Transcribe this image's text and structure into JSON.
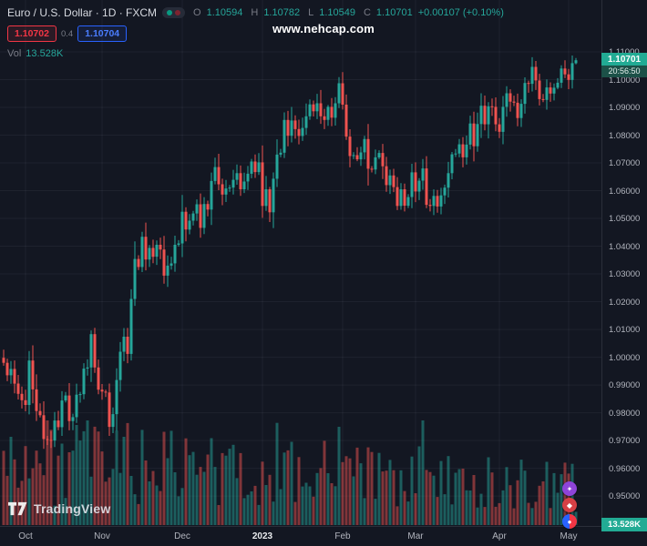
{
  "header": {
    "symbol_title": "Euro / U.S. Dollar · 1D · FXCM",
    "ohlc_labels": {
      "o": "O",
      "h": "H",
      "l": "L",
      "c": "C"
    },
    "ohlc_values": {
      "o": "1.10594",
      "h": "1.10782",
      "l": "1.10549",
      "c": "1.10701"
    },
    "change": "+0.00107 (+0.10%)",
    "sell_price": "1.10702",
    "spread": "0.4",
    "buy_price": "1.10704",
    "vol_label": "Vol",
    "vol_value": "13.528K"
  },
  "watermark": "www.nehcap.com",
  "price_scale": {
    "last_price_label": "1.10701",
    "countdown": "20:56:50",
    "volume_label": "13.528K"
  },
  "footer": {
    "brand": "TradingView"
  },
  "floating_buttons": [
    {
      "icon": "sparkle-icon",
      "glyph": "✦",
      "color": "#8e44d8"
    },
    {
      "icon": "diamond-icon",
      "glyph": "◆",
      "color": "#d64045"
    },
    {
      "icon": "dual-color-dot-icon",
      "glyph": "●",
      "color": "#2962ff/#f23645"
    }
  ],
  "colors": {
    "background": "#131722",
    "up": "#26a69a",
    "down": "#ef5350",
    "price_badge": "#22ab94",
    "sell": "#f23645",
    "buy": "#2962ff"
  },
  "chart_data": {
    "type": "candlestick",
    "title": "Euro / U.S. Dollar, 1D, FXCM",
    "symbol": "EUR/USD",
    "interval": "1D",
    "exchange": "FXCM",
    "grid": true,
    "up_color": "#26a69a",
    "down_color": "#ef5350",
    "ylim": [
      0.9392,
      1.1287
    ],
    "y_ticks": [
      "1.11000",
      "1.10000",
      "1.09000",
      "1.08000",
      "1.07000",
      "1.06000",
      "1.05000",
      "1.04000",
      "1.03000",
      "1.02000",
      "1.01000",
      "1.00000",
      "0.99000",
      "0.98000",
      "0.97000",
      "0.96000",
      "0.95000"
    ],
    "x_ticks": [
      {
        "label": "Oct",
        "index": 6,
        "major": false
      },
      {
        "label": "Nov",
        "index": 27,
        "major": false
      },
      {
        "label": "Dec",
        "index": 49,
        "major": false
      },
      {
        "label": "2023",
        "index": 71,
        "major": true
      },
      {
        "label": "Feb",
        "index": 93,
        "major": false
      },
      {
        "label": "Mar",
        "index": 113,
        "major": false
      },
      {
        "label": "Apr",
        "index": 136,
        "major": false
      },
      {
        "label": "May",
        "index": 155,
        "major": false
      }
    ],
    "closes": [
      0.998,
      0.9935,
      0.9958,
      0.9905,
      0.9868,
      0.9845,
      0.9828,
      0.9988,
      0.9884,
      0.9806,
      0.9791,
      0.9705,
      0.9702,
      0.97,
      0.9772,
      0.9748,
      0.9844,
      0.9862,
      0.977,
      0.9784,
      0.9865,
      0.9867,
      0.9959,
      0.9963,
      1.0083,
      0.9963,
      0.9883,
      0.9876,
      0.9873,
      0.9749,
      0.9795,
      0.9918,
      1.002,
      1.0074,
      1.0012,
      1.021,
      1.0354,
      1.0325,
      1.0434,
      1.0352,
      1.0394,
      1.0362,
      1.0405,
      1.0388,
      1.0294,
      1.033,
      1.0338,
      1.0405,
      1.041,
      1.0524,
      1.046,
      1.0492,
      1.0518,
      1.0551,
      1.0466,
      1.0552,
      1.0532,
      1.0635,
      1.0685,
      1.0623,
      1.0586,
      1.0608,
      1.0611,
      1.0639,
      1.0663,
      1.0605,
      1.0633,
      1.0661,
      1.0705,
      1.0667,
      1.0702,
      1.0545,
      1.0605,
      1.0522,
      1.0643,
      1.073,
      1.0737,
      1.0855,
      1.0798,
      1.0853,
      1.0822,
      1.0797,
      1.0826,
      1.0868,
      1.0911,
      1.0886,
      1.0915,
      1.0868,
      1.0855,
      1.0902,
      1.0863,
      1.0915,
      1.0987,
      1.091,
      1.0795,
      1.0725,
      1.0728,
      1.0713,
      1.0738,
      1.0786,
      1.0679,
      1.0676,
      1.072,
      1.0736,
      1.0688,
      1.062,
      1.0655,
      1.0613,
      1.0545,
      1.0605,
      1.0546,
      1.0577,
      1.0666,
      1.0597,
      1.0636,
      1.068,
      1.0549,
      1.0545,
      1.0581,
      1.0543,
      1.0583,
      1.0611,
      1.0663,
      1.0731,
      1.0734,
      1.0767,
      1.072,
      1.0766,
      1.0842,
      1.076,
      1.084,
      1.0906,
      1.0839,
      1.0904,
      1.0902,
      1.0839,
      1.0812,
      1.0902,
      1.0951,
      1.0921,
      1.0917,
      1.0862,
      1.0913,
      1.0988,
      1.0985,
      1.1046,
      1.0997,
      1.093,
      1.0927,
      1.0972,
      1.095,
      1.0971,
      1.0989,
      1.104,
      1.1019,
      1.0999,
      1.10594,
      1.10701
    ],
    "last_candle": {
      "open": 1.10594,
      "high": 1.10782,
      "low": 1.10549,
      "close": 1.10701,
      "volume_k": 13.528
    }
  }
}
